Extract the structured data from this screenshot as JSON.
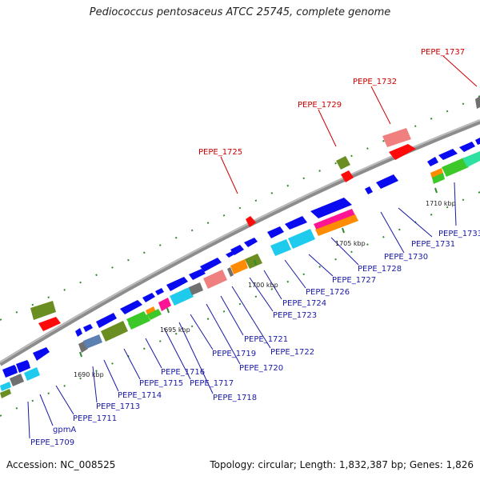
{
  "title": "Pediococcus pentosaceus ATCC 25745, complete genome",
  "footer": {
    "accession": "Accession: NC_008525",
    "summary": "Topology: circular; Length: 1,832,387 bp; Genes: 1,826"
  },
  "colors": {
    "backbone": "#8c8c8c",
    "blue": "#0a0af0",
    "cyan": "#1ecbec",
    "green": "#3cc828",
    "olive": "#6b8e23",
    "red": "#ff0a0a",
    "pink": "#f08080",
    "magenta": "#ff1493",
    "orange": "#ff8c00",
    "gray": "#707070",
    "aqua": "#30e0a0",
    "steel": "#5b7fb0",
    "label_blue": "#1a1aa6",
    "label_red": "#cc0000"
  },
  "ticks": [
    {
      "label": "1690 kbp"
    },
    {
      "label": "1695 kbp"
    },
    {
      "label": "1700 kbp"
    },
    {
      "label": "1705 kbp"
    },
    {
      "label": "1710 kbp"
    }
  ],
  "genes_forward": [
    {
      "name": "PEPE_1709",
      "color": "blue"
    },
    {
      "name": "gpmA",
      "color": "cyan"
    },
    {
      "name": "PEPE_1711",
      "color": "blue"
    },
    {
      "name": "PEPE_1713",
      "color": "blue"
    },
    {
      "name": "PEPE_1714",
      "color": "blue"
    },
    {
      "name": "PEPE_1715",
      "color": "blue"
    },
    {
      "name": "PEPE_1716",
      "color": "blue"
    },
    {
      "name": "PEPE_1717",
      "color": "blue"
    },
    {
      "name": "PEPE_1718",
      "color": "blue"
    },
    {
      "name": "PEPE_1719",
      "color": "cyan"
    },
    {
      "name": "PEPE_1720",
      "color": "blue"
    },
    {
      "name": "PEPE_1721",
      "color": "blue"
    },
    {
      "name": "PEPE_1722",
      "color": "blue"
    },
    {
      "name": "PEPE_1723",
      "color": "blue"
    },
    {
      "name": "PEPE_1724",
      "color": "blue"
    },
    {
      "name": "PEPE_1726",
      "color": "blue"
    },
    {
      "name": "PEPE_1727",
      "color": "cyan"
    },
    {
      "name": "PEPE_1728",
      "color": "blue"
    },
    {
      "name": "PEPE_1730",
      "color": "blue"
    },
    {
      "name": "PEPE_1731",
      "color": "blue"
    },
    {
      "name": "PEPE_1733",
      "color": "blue"
    }
  ],
  "genes_reverse_labels": [
    "PEPE_1725",
    "PEPE_1729",
    "PEPE_1732",
    "PEPE_1737"
  ]
}
